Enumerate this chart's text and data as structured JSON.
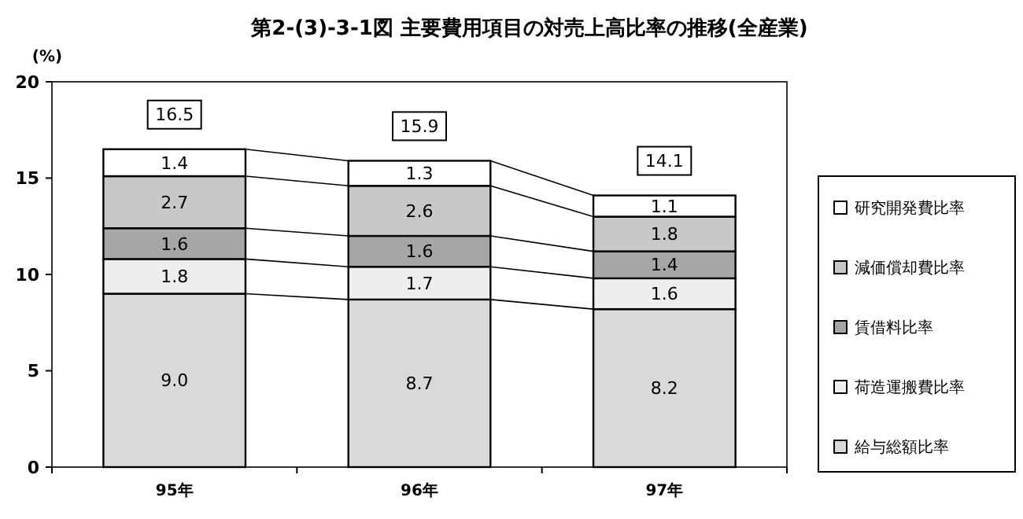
{
  "chart_data": {
    "type": "bar",
    "stacked": true,
    "title": "第2-(3)-3-1図 主要費用項目の対売上高比率の推移(全産業)",
    "ylabel": "(%)",
    "categories": [
      "95年",
      "96年",
      "97年"
    ],
    "series": [
      {
        "name": "給与総額比率",
        "color": "#d9d9d9",
        "values": [
          9.0,
          8.7,
          8.2
        ],
        "value_labels": [
          "9.0",
          "8.7",
          "8.2"
        ]
      },
      {
        "name": "荷造運搬費比率",
        "color": "#eeeeee",
        "values": [
          1.8,
          1.7,
          1.6
        ],
        "value_labels": [
          "1.8",
          "1.7",
          "1.6"
        ]
      },
      {
        "name": "賃借料比率",
        "color": "#a6a6a6",
        "values": [
          1.6,
          1.6,
          1.4
        ],
        "value_labels": [
          "1.6",
          "1.6",
          "1.4"
        ]
      },
      {
        "name": "減価償却費比率",
        "color": "#c8c8c8",
        "values": [
          2.7,
          2.6,
          1.8
        ],
        "value_labels": [
          "2.7",
          "2.6",
          "1.8"
        ]
      },
      {
        "name": "研究開発費比率",
        "color": "#ffffff",
        "values": [
          1.4,
          1.3,
          1.1
        ],
        "value_labels": [
          "1.4",
          "1.3",
          "1.1"
        ]
      }
    ],
    "totals": [
      "16.5",
      "15.9",
      "14.1"
    ],
    "ylim": [
      0,
      20
    ],
    "yticks": [
      0,
      5,
      10,
      15,
      20
    ],
    "grid": false,
    "legend": "right"
  }
}
